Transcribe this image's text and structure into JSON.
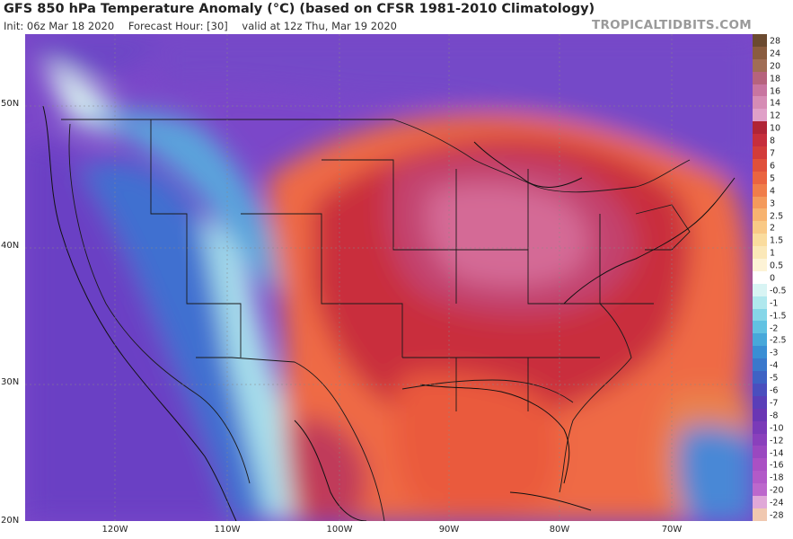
{
  "header": {
    "title": "GFS 850 hPa Temperature Anomaly (°C) (based on CFSR 1981-2010 Climatology)",
    "init": "Init: 06z Mar 18 2020",
    "forecast_hour": "Forecast Hour: [30]",
    "valid": "valid at 12z Thu, Mar 19 2020",
    "brand": "TROPICALTIDBITS.COM"
  },
  "axes": {
    "lat_labels": [
      "50N",
      "40N",
      "30N",
      "20N"
    ],
    "lon_labels": [
      "120W",
      "110W",
      "100W",
      "90W",
      "80W",
      "70W"
    ]
  },
  "colorbar": {
    "labels": [
      "28",
      "24",
      "20",
      "18",
      "16",
      "14",
      "12",
      "10",
      "8",
      "7",
      "6",
      "5",
      "4",
      "3",
      "2.5",
      "2",
      "1.5",
      "1",
      "0.5",
      "0",
      "-0.5",
      "-1",
      "-1.5",
      "-2",
      "-2.5",
      "-3",
      "-4",
      "-5",
      "-6",
      "-7",
      "-8",
      "-10",
      "-12",
      "-14",
      "-16",
      "-18",
      "-20",
      "-24",
      "-28"
    ],
    "colors": [
      "#6b4a30",
      "#8a5c3f",
      "#a06d55",
      "#b6637d",
      "#c875a0",
      "#d68cb5",
      "#e0a0c8",
      "#b02436",
      "#c62e3c",
      "#d23c3a",
      "#e0503b",
      "#ea6440",
      "#f07d4a",
      "#f49a5c",
      "#f7b370",
      "#f9c986",
      "#fadc9e",
      "#fbe8b8",
      "#fdf3d6",
      "#ffffff",
      "#d8f4f4",
      "#b0e8ee",
      "#86d6e8",
      "#62c2e2",
      "#48a8da",
      "#3a8ed4",
      "#3a78cc",
      "#3e62c4",
      "#4a4ebe",
      "#5a3eb8",
      "#6a36b4",
      "#7a3ab8",
      "#8a40bc",
      "#9a48c0",
      "#aa50c4",
      "#b25ac8",
      "#bc68cc",
      "#e0a8d8",
      "#f0c8b0"
    ]
  }
}
